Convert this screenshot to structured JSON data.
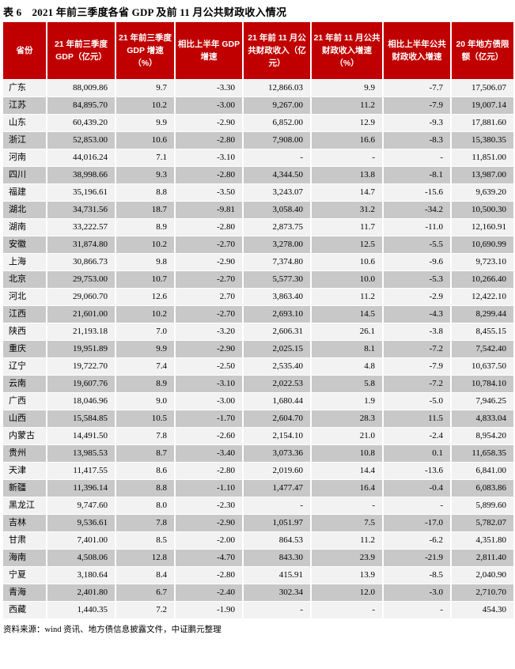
{
  "title": "表 6　2021 年前三季度各省 GDP 及前 11 月公共财政收入情况",
  "source_note": "资料来源：wind 资讯、地方债信息披露文件，中证鹏元整理",
  "colors": {
    "header_bg": "#C00000",
    "header_text": "#FFFFFF",
    "row_light_bg": "#F2F2F2",
    "row_dark_bg": "#C8C8C8",
    "title_text": "#000000"
  },
  "chart_data": {
    "type": "table",
    "title": "2021 年前三季度各省 GDP 及前 11 月公共财政收入情况",
    "columns": [
      "省份",
      "21 年前三季度 GDP（亿元）",
      "21 年前三季度 GDP 增速（%）",
      "相比上半年 GDP 增速",
      "21 年前 11 月公共财政收入（亿元）",
      "21 年前 11 月公共财政收入增速（%）",
      "相比上半年公共财政收入增速",
      "20 年地方债限额（亿元）"
    ],
    "rows": [
      [
        "广东",
        "88,009.86",
        "9.7",
        "-3.30",
        "12,866.03",
        "9.9",
        "-7.7",
        "17,506.07"
      ],
      [
        "江苏",
        "84,895.70",
        "10.2",
        "-3.00",
        "9,267.00",
        "11.2",
        "-7.9",
        "19,007.14"
      ],
      [
        "山东",
        "60,439.20",
        "9.9",
        "-2.90",
        "6,852.00",
        "12.9",
        "-9.3",
        "17,881.60"
      ],
      [
        "浙江",
        "52,853.00",
        "10.6",
        "-2.80",
        "7,908.00",
        "16.6",
        "-8.3",
        "15,380.35"
      ],
      [
        "河南",
        "44,016.24",
        "7.1",
        "-3.10",
        "-",
        "-",
        "-",
        "11,851.00"
      ],
      [
        "四川",
        "38,998.66",
        "9.3",
        "-2.80",
        "4,344.50",
        "13.8",
        "-8.1",
        "13,987.00"
      ],
      [
        "福建",
        "35,196.61",
        "8.8",
        "-3.50",
        "3,243.07",
        "14.7",
        "-15.6",
        "9,639.20"
      ],
      [
        "湖北",
        "34,731.56",
        "18.7",
        "-9.81",
        "3,058.40",
        "31.2",
        "-34.2",
        "10,500.30"
      ],
      [
        "湖南",
        "33,222.57",
        "8.9",
        "-2.80",
        "2,873.75",
        "11.7",
        "-11.0",
        "12,160.91"
      ],
      [
        "安徽",
        "31,874.80",
        "10.2",
        "-2.70",
        "3,278.00",
        "12.5",
        "-5.5",
        "10,690.99"
      ],
      [
        "上海",
        "30,866.73",
        "9.8",
        "-2.90",
        "7,374.80",
        "10.6",
        "-9.6",
        "9,723.10"
      ],
      [
        "北京",
        "29,753.00",
        "10.7",
        "-2.70",
        "5,577.30",
        "10.0",
        "-5.3",
        "10,266.40"
      ],
      [
        "河北",
        "29,060.70",
        "12.6",
        "2.70",
        "3,863.40",
        "11.2",
        "-2.9",
        "12,422.10"
      ],
      [
        "江西",
        "21,601.00",
        "10.2",
        "-2.70",
        "2,693.10",
        "14.5",
        "-4.3",
        "8,299.44"
      ],
      [
        "陕西",
        "21,193.18",
        "7.0",
        "-3.20",
        "2,606.31",
        "26.1",
        "-3.8",
        "8,455.15"
      ],
      [
        "重庆",
        "19,951.89",
        "9.9",
        "-2.90",
        "2,025.15",
        "8.1",
        "-7.2",
        "7,542.40"
      ],
      [
        "辽宁",
        "19,722.70",
        "7.4",
        "-2.50",
        "2,535.40",
        "4.8",
        "-7.9",
        "10,637.50"
      ],
      [
        "云南",
        "19,607.76",
        "8.9",
        "-3.10",
        "2,022.53",
        "5.8",
        "-7.2",
        "10,784.10"
      ],
      [
        "广西",
        "18,046.96",
        "9.0",
        "-3.00",
        "1,680.44",
        "1.9",
        "-5.0",
        "7,946.25"
      ],
      [
        "山西",
        "15,584.85",
        "10.5",
        "-1.70",
        "2,604.70",
        "28.3",
        "11.5",
        "4,833.04"
      ],
      [
        "内蒙古",
        "14,491.50",
        "7.8",
        "-2.60",
        "2,154.10",
        "21.0",
        "-2.4",
        "8,954.20"
      ],
      [
        "贵州",
        "13,985.53",
        "8.7",
        "-3.40",
        "3,073.36",
        "10.8",
        "0.1",
        "11,658.35"
      ],
      [
        "天津",
        "11,417.55",
        "8.6",
        "-2.80",
        "2,019.60",
        "14.4",
        "-13.6",
        "6,841.00"
      ],
      [
        "新疆",
        "11,396.14",
        "8.8",
        "-1.10",
        "1,477.47",
        "16.4",
        "-0.4",
        "6,083.86"
      ],
      [
        "黑龙江",
        "9,747.60",
        "8.0",
        "-2.30",
        "-",
        "-",
        "-",
        "5,899.60"
      ],
      [
        "吉林",
        "9,536.61",
        "7.8",
        "-2.90",
        "1,051.97",
        "7.5",
        "-17.0",
        "5,782.07"
      ],
      [
        "甘肃",
        "7,401.00",
        "8.5",
        "-2.00",
        "864.53",
        "11.2",
        "-6.2",
        "4,351.80"
      ],
      [
        "海南",
        "4,508.06",
        "12.8",
        "-4.70",
        "843.30",
        "23.9",
        "-21.9",
        "2,811.40"
      ],
      [
        "宁夏",
        "3,180.64",
        "8.4",
        "-2.80",
        "415.91",
        "13.9",
        "-8.5",
        "2,040.90"
      ],
      [
        "青海",
        "2,401.80",
        "6.7",
        "-2.40",
        "302.34",
        "12.0",
        "-3.0",
        "2,710.70"
      ],
      [
        "西藏",
        "1,440.35",
        "7.2",
        "-1.90",
        "-",
        "-",
        "-",
        "454.30"
      ]
    ]
  }
}
